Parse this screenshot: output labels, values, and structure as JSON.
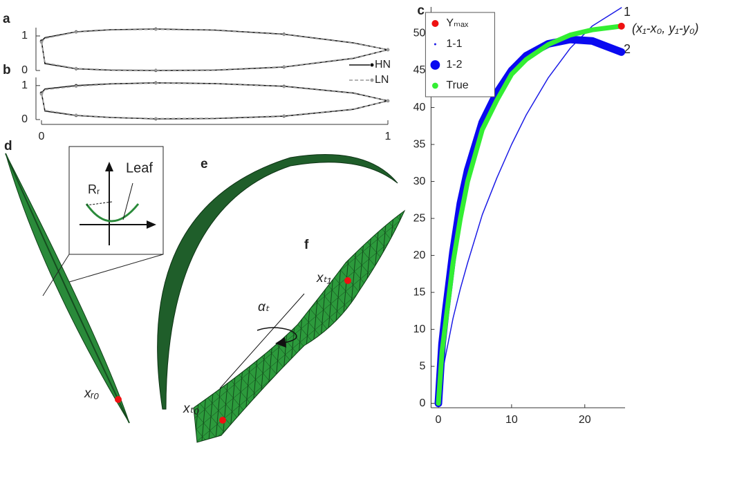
{
  "chart_data": [
    {
      "type": "profile",
      "label": "a",
      "x": [
        0,
        0.01,
        0.1,
        0.2,
        0.33,
        0.5,
        0.7,
        0.9,
        1
      ],
      "ylim": [
        0,
        1.24
      ],
      "yticks": [
        0,
        1
      ],
      "series": [
        {
          "name": "HN",
          "color": "#111111",
          "dash": false,
          "values": [
            0.85,
            0.95,
            1.12,
            1.18,
            1.2,
            1.17,
            1.05,
            0.8,
            0.6
          ],
          "values_lower": [
            0.85,
            0.2,
            0.05,
            0.01,
            0,
            0.01,
            0.1,
            0.35,
            0.6
          ]
        },
        {
          "name": "LN",
          "color": "#999999",
          "dash": true,
          "values": [
            0.82,
            0.93,
            1.11,
            1.17,
            1.19,
            1.16,
            1.04,
            0.79,
            0.6
          ],
          "values_lower": [
            0.82,
            0.22,
            0.06,
            0.02,
            0.01,
            0.02,
            0.11,
            0.36,
            0.6
          ]
        }
      ]
    },
    {
      "type": "profile",
      "label": "b",
      "x": [
        0,
        0.01,
        0.1,
        0.2,
        0.33,
        0.5,
        0.7,
        0.9,
        1
      ],
      "xlim": [
        0,
        1
      ],
      "xticks": [
        0,
        1
      ],
      "ylim": [
        0,
        1.24
      ],
      "yticks": [
        0,
        1
      ],
      "series": [
        {
          "color": "#111111",
          "dash": false,
          "values": [
            0.78,
            0.9,
            1.0,
            1.05,
            1.08,
            1.06,
            0.98,
            0.78,
            0.55
          ],
          "values_lower": [
            0.78,
            0.25,
            0.12,
            0.06,
            0.02,
            0.03,
            0.1,
            0.3,
            0.55
          ]
        },
        {
          "color": "#999999",
          "dash": true,
          "values": [
            0.75,
            0.88,
            0.98,
            1.04,
            1.07,
            1.05,
            0.97,
            0.77,
            0.55
          ],
          "values_lower": [
            0.75,
            0.27,
            0.13,
            0.07,
            0.03,
            0.04,
            0.11,
            0.31,
            0.55
          ]
        }
      ]
    },
    {
      "type": "line",
      "label": "c",
      "x": [
        0,
        0.5,
        1,
        2,
        3,
        4,
        6,
        8,
        10,
        12,
        15,
        18,
        21,
        25
      ],
      "xlim": [
        -1,
        25.5
      ],
      "xticks": [
        0,
        10,
        20
      ],
      "ylim": [
        -0.6,
        53.6
      ],
      "yticks": [
        0,
        5,
        10,
        15,
        20,
        25,
        30,
        35,
        40,
        45,
        50
      ],
      "annotations": [
        "1",
        "2",
        "(x₁-x₀, y₁-y₀)"
      ],
      "series": [
        {
          "name": "Yₘₐₓ",
          "color": "#ee1111",
          "marker": true,
          "x": [
            25
          ],
          "values": [
            51
          ]
        },
        {
          "name": "1-1",
          "color": "#1a1ae6",
          "line_width": 1.5,
          "values": [
            0,
            4,
            6.5,
            11.5,
            15.5,
            19,
            25.5,
            30.5,
            35,
            39,
            44,
            48,
            51,
            53.5
          ]
        },
        {
          "name": "1-2",
          "color": "#0a0af0",
          "line_width": 11,
          "values": [
            0,
            8,
            12.5,
            20.5,
            27,
            31.5,
            38,
            42,
            45,
            47,
            48.6,
            49.2,
            49,
            47.5
          ]
        },
        {
          "name": "True",
          "color": "#33ee33",
          "line_width": 7,
          "values": [
            0,
            7,
            11,
            19,
            25,
            30,
            37,
            41,
            44.5,
            46.5,
            48.5,
            49.8,
            50.5,
            51
          ]
        }
      ]
    }
  ],
  "illustrations": {
    "d": {
      "label": "d",
      "leaf": "Leaf",
      "radius": "Rᵣ",
      "point": "xᵣ₀"
    },
    "e": {
      "label": "e"
    },
    "f": {
      "label": "f",
      "angle": "αₜ",
      "start": "xₜ₀",
      "end": "xₜ₁"
    }
  }
}
